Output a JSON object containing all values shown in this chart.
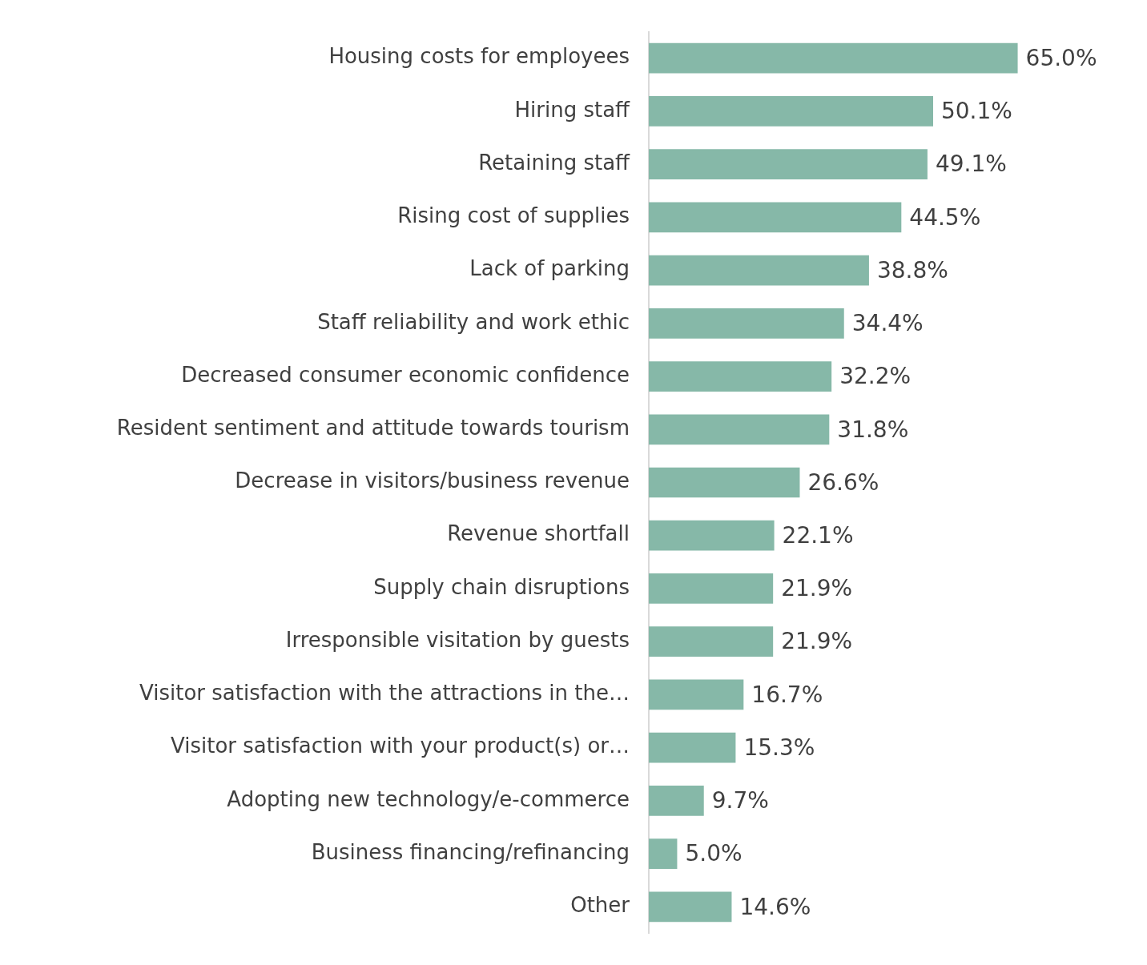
{
  "chart_data": {
    "type": "bar",
    "orientation": "horizontal",
    "categories": [
      "Housing costs for employees",
      "Hiring staff",
      "Retaining staff",
      "Rising cost of supplies",
      "Lack of parking",
      "Staff reliability and work ethic",
      "Decreased consumer economic confidence",
      "Resident sentiment and attitude towards tourism",
      "Decrease in visitors/business revenue",
      "Revenue shortfall",
      "Supply chain disruptions",
      "Irresponsible visitation by guests",
      "Visitor satisfaction with the attractions in the…",
      "Visitor satisfaction with your product(s) or…",
      "Adopting new technology/e-commerce",
      "Business financing/refinancing",
      "Other"
    ],
    "values": [
      65.0,
      50.1,
      49.1,
      44.5,
      38.8,
      34.4,
      32.2,
      31.8,
      26.6,
      22.1,
      21.9,
      21.9,
      16.7,
      15.3,
      9.7,
      5.0,
      14.6
    ],
    "value_labels": [
      "65.0%",
      "50.1%",
      "49.1%",
      "44.5%",
      "38.8%",
      "34.4%",
      "32.2%",
      "31.8%",
      "26.6%",
      "22.1%",
      "21.9%",
      "21.9%",
      "16.7%",
      "15.3%",
      "9.7%",
      "5.0%",
      "14.6%"
    ],
    "color": "#86b8a8",
    "legend": false
  }
}
